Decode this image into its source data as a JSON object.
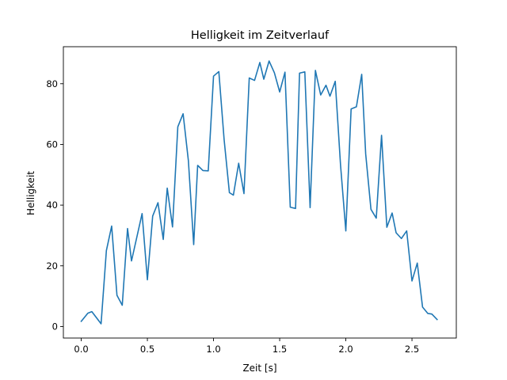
{
  "chart_data": {
    "type": "line",
    "title": "Helligkeit im Zeitverlauf",
    "xlabel": "Zeit [s]",
    "ylabel": "Helligkeit",
    "xlim": [
      -0.135,
      2.835
    ],
    "ylim": [
      -3.8,
      92.2
    ],
    "xticks": [
      0.0,
      0.5,
      1.0,
      1.5,
      2.0,
      2.5
    ],
    "xtick_labels": [
      "0.0",
      "0.5",
      "1.0",
      "1.5",
      "2.0",
      "2.5"
    ],
    "yticks": [
      0,
      20,
      40,
      60,
      80
    ],
    "ytick_labels": [
      "0",
      "20",
      "40",
      "60",
      "80"
    ],
    "grid": false,
    "line_color": "#1f77b4",
    "series": [
      {
        "x": [
          0.0,
          0.05,
          0.08,
          0.15,
          0.19,
          0.23,
          0.27,
          0.31,
          0.35,
          0.38,
          0.46,
          0.5,
          0.54,
          0.58,
          0.62,
          0.65,
          0.69,
          0.73,
          0.77,
          0.81,
          0.85,
          0.88,
          0.92,
          0.96,
          1.0,
          1.04,
          1.08,
          1.12,
          1.15,
          1.19,
          1.23,
          1.27,
          1.31,
          1.35,
          1.38,
          1.42,
          1.46,
          1.5,
          1.54,
          1.58,
          1.62,
          1.65,
          1.69,
          1.73,
          1.77,
          1.81,
          1.85,
          1.88,
          1.92,
          1.96,
          2.0,
          2.04,
          2.08,
          2.12,
          2.15,
          2.19,
          2.23,
          2.27,
          2.31,
          2.35,
          2.38,
          2.42,
          2.46,
          2.5,
          2.54,
          2.58,
          2.62,
          2.65,
          2.69
        ],
        "y": [
          1.7,
          4.4,
          4.9,
          0.9,
          25.0,
          33.1,
          10.3,
          7.0,
          32.3,
          21.6,
          37.2,
          15.4,
          36.4,
          40.8,
          28.7,
          45.6,
          32.8,
          65.8,
          70.1,
          54.6,
          27.0,
          53.1,
          51.4,
          51.3,
          82.5,
          84.0,
          61.6,
          44.1,
          43.3,
          53.8,
          43.8,
          81.9,
          81.1,
          87.0,
          81.5,
          87.5,
          83.6,
          77.3,
          83.8,
          39.3,
          38.9,
          83.5,
          83.9,
          39.2,
          84.4,
          76.3,
          79.5,
          75.9,
          80.8,
          53.2,
          31.5,
          71.7,
          72.4,
          83.1,
          56.9,
          38.6,
          35.7,
          63.0,
          32.7,
          37.4,
          30.9,
          29.0,
          31.5,
          15.0,
          20.9,
          6.4,
          4.3,
          4.1,
          2.3
        ]
      }
    ]
  }
}
